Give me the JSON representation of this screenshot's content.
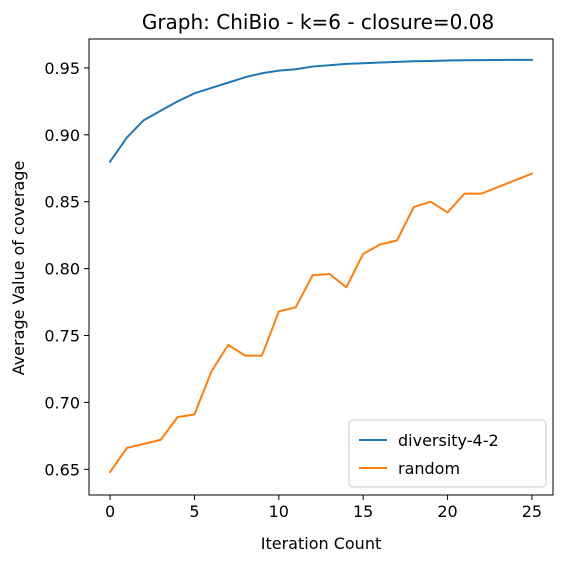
{
  "chart_data": {
    "type": "line",
    "title": "Graph: ChiBio - k=6 - closure=0.08",
    "xlabel": "Iteration Count",
    "ylabel": "Average Value of coverage",
    "xlim": [
      -1.25,
      26.25
    ],
    "ylim": [
      0.6308,
      0.9716
    ],
    "xticks": [
      0,
      5,
      10,
      15,
      20,
      25
    ],
    "xtick_labels": [
      "0",
      "5",
      "10",
      "15",
      "20",
      "25"
    ],
    "yticks": [
      0.65,
      0.7,
      0.75,
      0.8,
      0.85,
      0.9,
      0.95
    ],
    "ytick_labels": [
      "0.65",
      "0.70",
      "0.75",
      "0.80",
      "0.85",
      "0.90",
      "0.95"
    ],
    "grid": false,
    "legend_position": "lower-right",
    "x": [
      0,
      1,
      2,
      3,
      4,
      5,
      6,
      7,
      8,
      9,
      10,
      11,
      12,
      13,
      14,
      15,
      16,
      17,
      18,
      19,
      20,
      21,
      22,
      23,
      24,
      25
    ],
    "series": [
      {
        "name": "diversity-4-2",
        "color": "#1f77b4",
        "values": [
          0.88,
          0.898,
          0.911,
          0.918,
          0.925,
          0.931,
          0.935,
          0.939,
          0.943,
          0.946,
          0.948,
          0.949,
          0.951,
          0.952,
          0.953,
          0.9535,
          0.954,
          0.9545,
          0.955,
          0.9552,
          0.9555,
          0.9557,
          0.9558,
          0.9559,
          0.956,
          0.956
        ]
      },
      {
        "name": "random",
        "color": "#ff7f0e",
        "values": [
          0.648,
          0.666,
          0.669,
          0.672,
          0.689,
          0.691,
          0.723,
          0.743,
          0.735,
          0.735,
          0.768,
          0.771,
          0.795,
          0.796,
          0.786,
          0.811,
          0.818,
          0.821,
          0.846,
          0.85,
          0.842,
          0.856,
          0.856,
          0.861,
          0.866,
          0.871
        ]
      }
    ]
  }
}
